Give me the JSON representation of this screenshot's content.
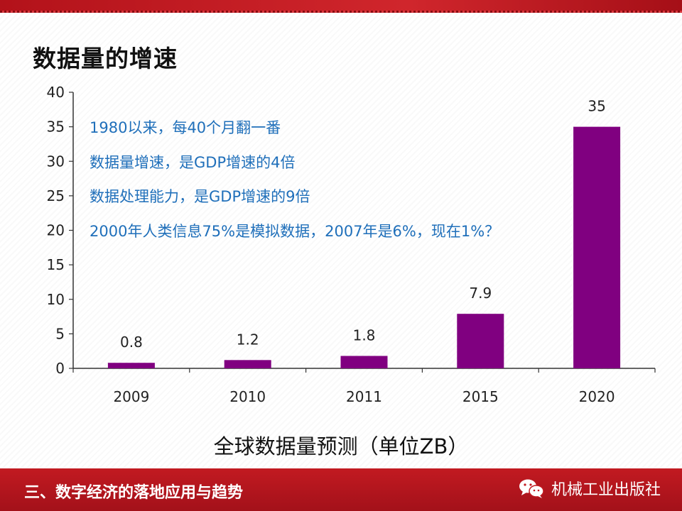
{
  "slide": {
    "title": "数据量的增速",
    "notes": [
      "1980以来，每40个月翻一番",
      "数据量增速，是GDP增速的4倍",
      "数据处理能力，是GDP增速的9倍",
      "2000年人类信息75%是模拟数据，2007年是6%，现在1%？"
    ],
    "caption": "全球数据量预测（单位ZB）"
  },
  "footer": {
    "section": "三、数字经济的落地应用与趋势",
    "brand": "机械工业出版社",
    "brand_icon": "wechat-icon"
  },
  "colors": {
    "accent": "#c21a21",
    "bar": "#800080",
    "note_text": "#1f6fba"
  },
  "chart_data": {
    "type": "bar",
    "title": "",
    "xlabel": "",
    "ylabel": "",
    "categories": [
      "2009",
      "2010",
      "2011",
      "2015",
      "2020"
    ],
    "values": [
      0.8,
      1.2,
      1.8,
      7.9,
      35
    ],
    "value_labels": [
      "0.8",
      "1.2",
      "1.8",
      "7.9",
      "35"
    ],
    "ylim": [
      0,
      40
    ],
    "yticks": [
      "0",
      "5",
      "10",
      "15",
      "20",
      "25",
      "30",
      "35",
      "40"
    ],
    "grid": false,
    "legend": "none"
  }
}
